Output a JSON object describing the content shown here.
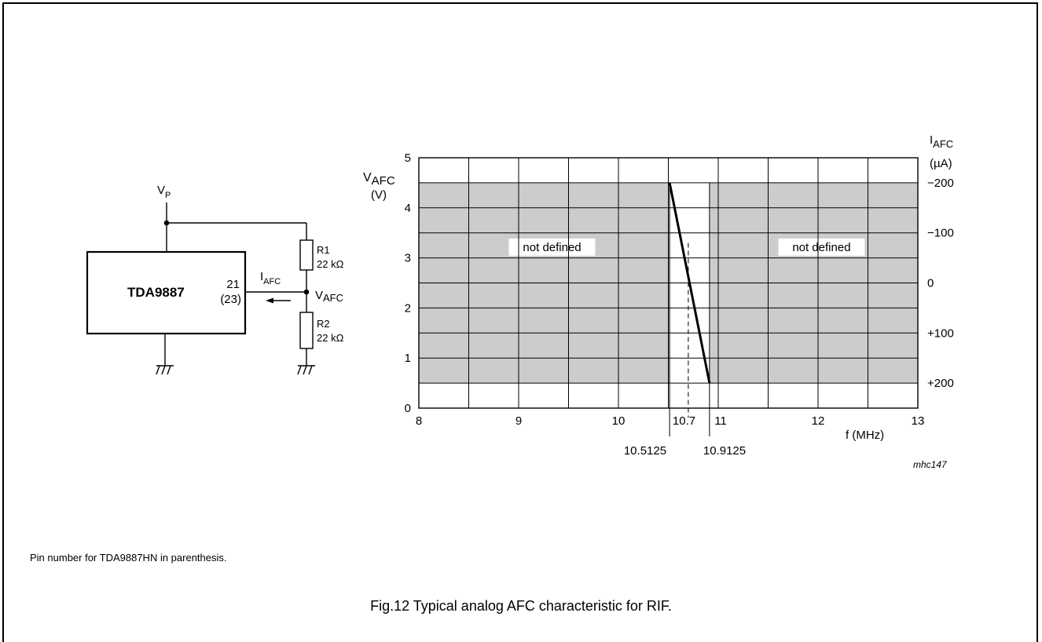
{
  "circuit": {
    "supply_label": "V",
    "supply_sub": "P",
    "ic_label": "TDA9887",
    "pin_number": "21",
    "pin_number_alt": "(23)",
    "current_label": "I",
    "current_sub": "AFC",
    "node_label": "V",
    "node_sub": "AFC",
    "r1_name": "R1",
    "r1_value": "22 kΩ",
    "r2_name": "R2",
    "r2_value": "22 kΩ"
  },
  "chart_data": {
    "type": "line",
    "x_ticks": [
      "8",
      "9",
      "10",
      "11",
      "12",
      "13"
    ],
    "y_ticks": [
      "0",
      "1",
      "2",
      "3",
      "4",
      "5"
    ],
    "y2_ticks": [
      "−200",
      "−100",
      "0",
      "+100",
      "+200"
    ],
    "y_label_main": "V",
    "y_label_sub": "AFC",
    "y_label_unit": "(V)",
    "y2_label_main": "I",
    "y2_label_sub": "AFC",
    "y2_label_unit": "(µA)",
    "x_label": "f (MHz)",
    "xlim": [
      8,
      13
    ],
    "ylim": [
      0,
      5
    ],
    "y2lim": [
      -200,
      200
    ],
    "series": [
      {
        "x": [
          10.5125,
          10.9125
        ],
        "y": [
          4.5,
          0.5
        ]
      }
    ],
    "marker_labels": [
      "10.5125",
      "10.7",
      "10.9125"
    ],
    "marker_x": [
      10.5125,
      10.7,
      10.9125
    ],
    "undefined_regions": [
      {
        "x_from": 8,
        "x_to": 10.5125,
        "y_from": 0.5,
        "y_to": 4.5,
        "label": "not defined"
      },
      {
        "x_from": 10.9125,
        "x_to": 13,
        "y_from": 0.5,
        "y_to": 4.5,
        "label": "not defined"
      }
    ],
    "figure_code": "mhc147"
  },
  "note": "Pin number for TDA9887HN in parenthesis.",
  "caption": "Fig.12  Typical analog AFC characteristic for RIF."
}
